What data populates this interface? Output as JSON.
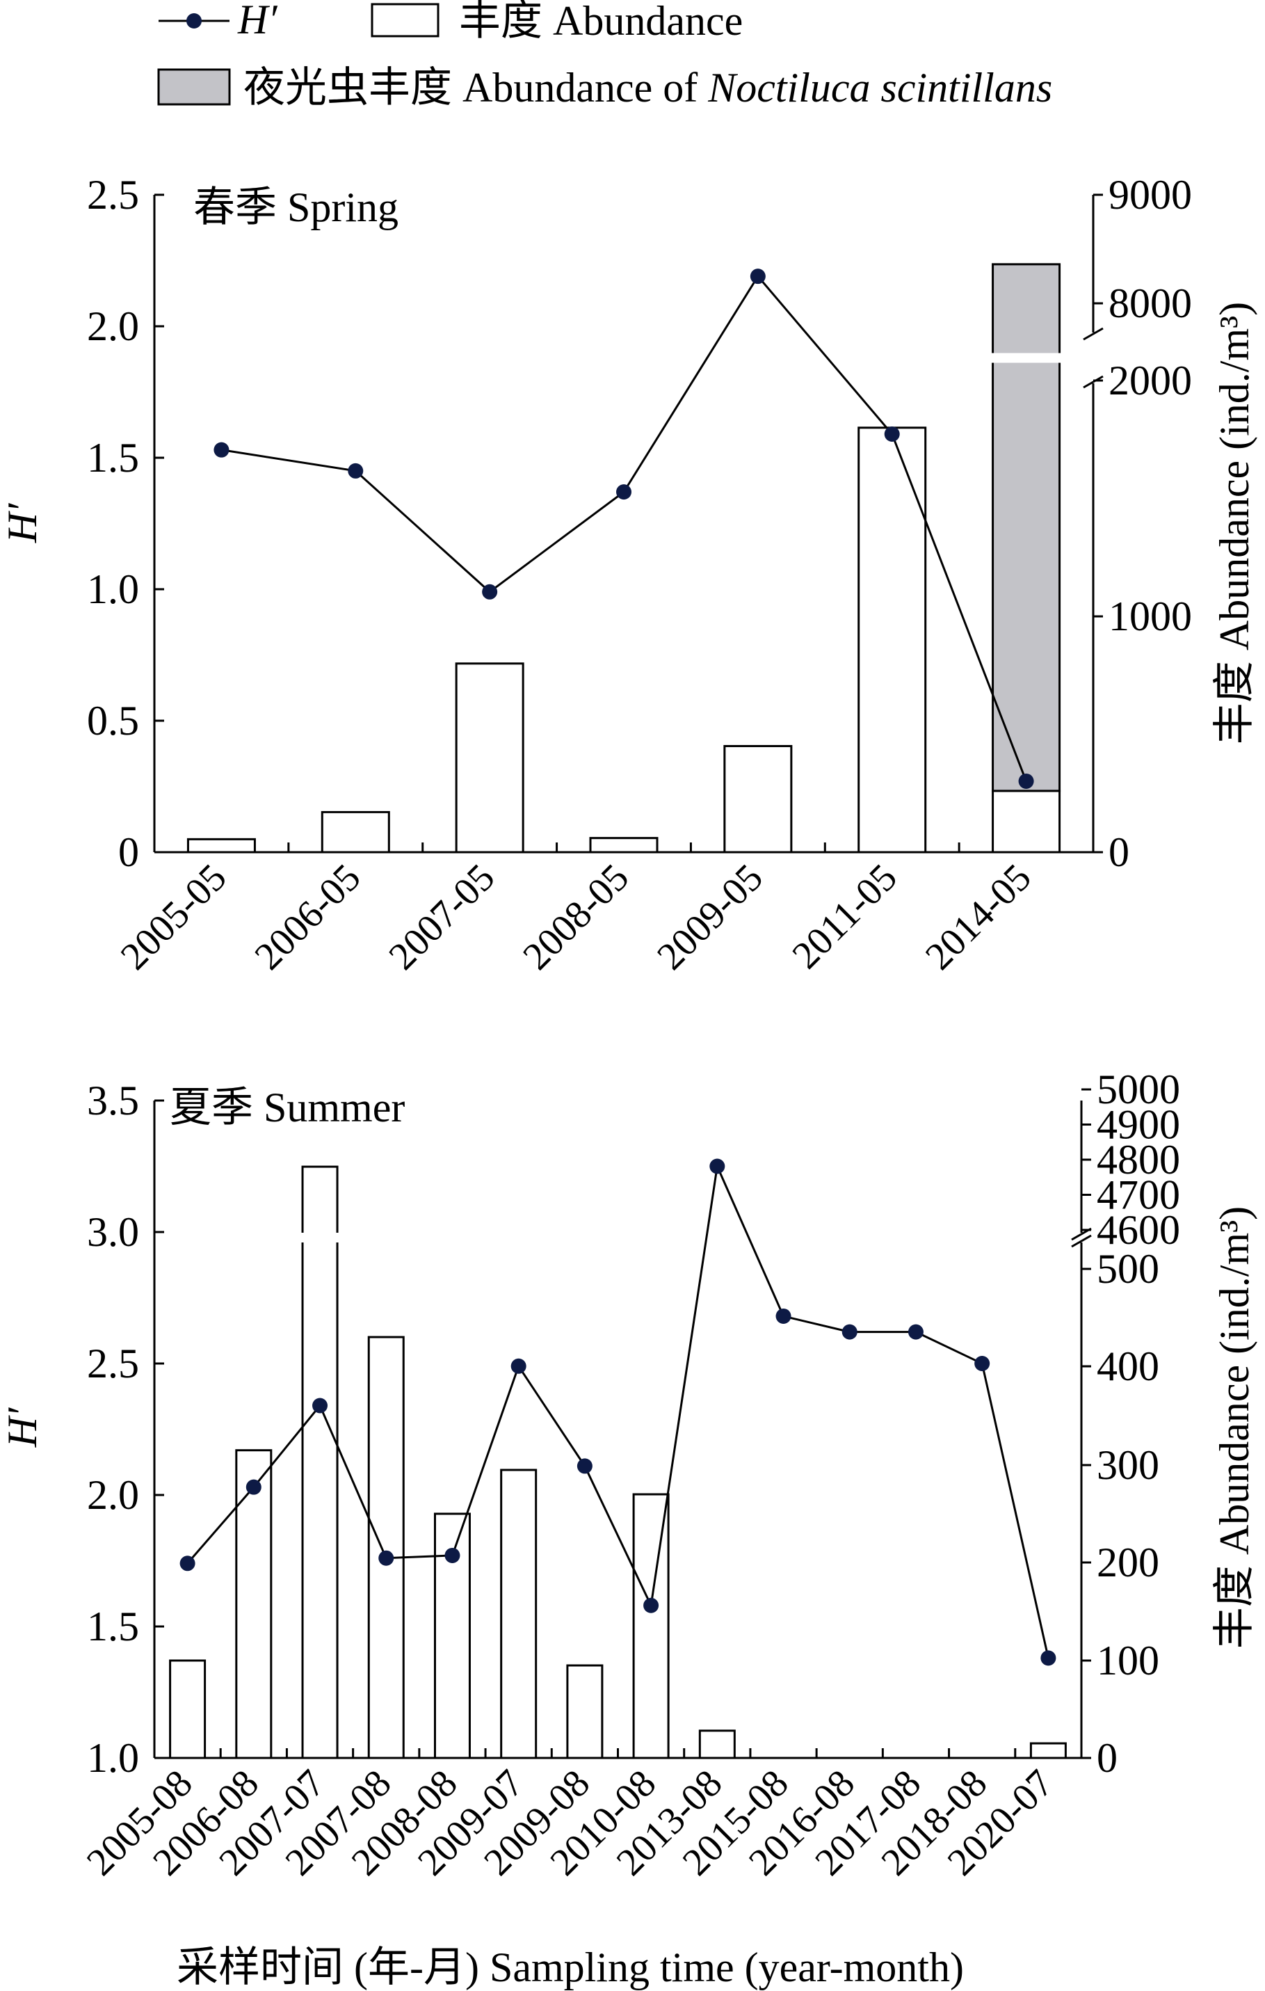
{
  "legend": {
    "hprime": "H′",
    "abundance": "丰度 Abundance",
    "noctiluca_prefix": "夜光虫丰度 Abundance of ",
    "noctiluca_species": "Noctiluca scintillans"
  },
  "colors": {
    "line": "#000000",
    "marker": "#0d1a45",
    "bar_open": "#ffffff",
    "bar_noctiluca": "#c3c3c8"
  },
  "chart_data": [
    {
      "type": "bar+line",
      "panel_label": "春季 Spring",
      "categories": [
        "2005-05",
        "2006-05",
        "2007-05",
        "2008-05",
        "2009-05",
        "2011-05",
        "2014-05"
      ],
      "ylabel_left": "H′",
      "ylabel_right": "丰度 Abundance (ind./m³)",
      "ylim_left": [
        0,
        2.5
      ],
      "yticks_left": [
        "0",
        "0.5",
        "1.0",
        "1.5",
        "2.0",
        "2.5"
      ],
      "yticks_right": [
        "0",
        "1000",
        "2000",
        "8000",
        "9000"
      ],
      "right_axis_break": {
        "lower": [
          0,
          2000
        ],
        "upper": [
          7650,
          9000
        ]
      },
      "series": [
        {
          "name": "丰度 Abundance",
          "kind": "bar",
          "values": [
            55,
            170,
            800,
            60,
            450,
            1800,
            260
          ]
        },
        {
          "name": "夜光虫丰度 Abundance of Noctiluca scintillans",
          "kind": "bar-stacked",
          "values": [
            0,
            0,
            0,
            0,
            0,
            0,
            8100
          ]
        },
        {
          "name": "H′",
          "kind": "line",
          "axis": "left",
          "values": [
            1.53,
            1.45,
            0.99,
            1.37,
            2.19,
            1.59,
            0.27
          ]
        }
      ]
    },
    {
      "type": "bar+line",
      "panel_label": "夏季 Summer",
      "categories": [
        "2005-08",
        "2006-08",
        "2007-07",
        "2007-08",
        "2008-08",
        "2009-07",
        "2009-08",
        "2010-08",
        "2013-08",
        "2015-08",
        "2016-08",
        "2017-08",
        "2018-08",
        "2020-07"
      ],
      "xlabel": "采样时间 (年-月) Sampling time (year-month)",
      "ylabel_left": "H′",
      "ylabel_right": "丰度 Abundance (ind./m³)",
      "ylim_left": [
        1.0,
        3.5
      ],
      "yticks_left": [
        "1.0",
        "1.5",
        "2.0",
        "2.5",
        "3.0",
        "3.5"
      ],
      "yticks_right": [
        "0",
        "100",
        "200",
        "300",
        "400",
        "500",
        "4600",
        "4700",
        "4800",
        "4900",
        "5000"
      ],
      "right_axis_break": {
        "lower": [
          0,
          530
        ],
        "upper": [
          4570,
          5000
        ]
      },
      "series": [
        {
          "name": "丰度 Abundance",
          "kind": "bar",
          "values": [
            100,
            315,
            4780,
            430,
            250,
            295,
            95,
            270,
            28,
            0,
            0,
            0,
            0,
            15
          ]
        },
        {
          "name": "H′",
          "kind": "line",
          "axis": "left",
          "values": [
            1.74,
            2.03,
            2.34,
            1.76,
            1.77,
            2.49,
            2.11,
            1.58,
            3.25,
            2.68,
            2.62,
            2.62,
            2.5,
            1.38
          ]
        }
      ]
    }
  ]
}
